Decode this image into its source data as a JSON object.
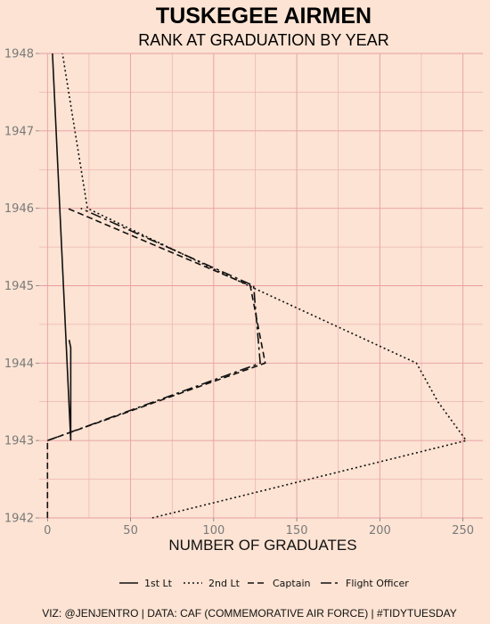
{
  "chart_data": {
    "type": "line",
    "title": "TUSKEGEE AIRMEN",
    "subtitle": "RANK AT GRADUATION BY YEAR",
    "xlabel": "NUMBER OF GRADUATES",
    "ylabel": "",
    "xlim": [
      -5,
      262
    ],
    "ylim": [
      1942,
      1948
    ],
    "x_ticks": [
      0,
      50,
      100,
      150,
      200,
      250
    ],
    "y_ticks": [
      1942,
      1943,
      1944,
      1945,
      1946,
      1947,
      1948
    ],
    "grid": true,
    "legend_position": "bottom",
    "series": [
      {
        "name": "1st Lt",
        "dash": "solid",
        "points": [
          [
            3,
            1948
          ],
          [
            14,
            1943
          ],
          [
            14,
            1944.2
          ],
          [
            13,
            1944.3
          ]
        ]
      },
      {
        "name": "2nd Lt",
        "dash": "dotted",
        "points": [
          [
            63,
            1942
          ],
          [
            252,
            1943
          ],
          [
            235,
            1943.5
          ],
          [
            222,
            1944
          ],
          [
            121,
            1945
          ],
          [
            24,
            1946
          ],
          [
            9,
            1948
          ]
        ]
      },
      {
        "name": "Captain",
        "dash": "dashed",
        "points": [
          [
            0,
            1942
          ],
          [
            0,
            1943
          ],
          [
            131,
            1944
          ],
          [
            122,
            1945
          ],
          [
            12,
            1946
          ]
        ]
      },
      {
        "name": "Flight Officer",
        "dash": "longdash",
        "points": [
          [
            0,
            1943
          ],
          [
            128,
            1944
          ],
          [
            124,
            1945
          ],
          [
            20,
            1946
          ]
        ]
      }
    ],
    "colors": {
      "background": "#fce3d3",
      "grid": "#e79ea3",
      "line": "#111111",
      "tick": "#7a7a7a"
    }
  },
  "caption": "VIZ: @JENJENTRO | DATA: CAF (COMMEMORATIVE AIR FORCE) | #TIDYTUESDAY"
}
